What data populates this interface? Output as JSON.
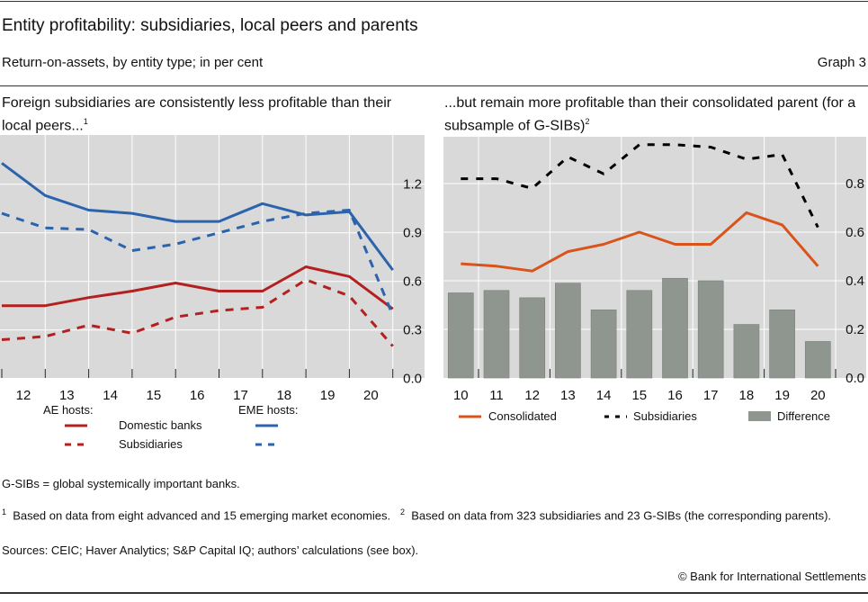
{
  "header": {
    "title": "Entity profitability: subsidiaries, local peers and parents",
    "subtitle": "Return-on-assets, by entity type; in per cent",
    "graph_label": "Graph 3"
  },
  "colors": {
    "background": "#d9d9d9",
    "grid": "#ffffff",
    "blue": "#2b63ad",
    "red": "#b3201f",
    "orange": "#d9531a",
    "black": "#000000",
    "bars": "#8f968f"
  },
  "chart_data": [
    {
      "type": "line",
      "title": "Foreign subsidiaries are consistently less profitable than their local peers...",
      "title_footnote": "1",
      "x_tick_labels": [
        "12",
        "13",
        "14",
        "15",
        "16",
        "17",
        "18",
        "19",
        "20"
      ],
      "ylim": [
        0,
        1.5
      ],
      "y_ticks": [
        "0.0",
        "0.3",
        "0.6",
        "0.9",
        "1.2"
      ],
      "grid": true,
      "y_axis_side": "right",
      "legend": {
        "placement": "bottom",
        "group_labels": [
          "AE hosts:",
          "EME hosts:"
        ],
        "row_labels": [
          "Domestic banks",
          "Subsidiaries"
        ]
      },
      "series": [
        {
          "name": "AE hosts: Domestic banks",
          "color": "#b3201f",
          "dash": false,
          "values": [
            0.45,
            0.45,
            0.5,
            0.54,
            0.59,
            0.54,
            0.54,
            0.69,
            0.63,
            0.43
          ]
        },
        {
          "name": "AE hosts: Subsidiaries",
          "color": "#b3201f",
          "dash": true,
          "values": [
            0.24,
            0.26,
            0.33,
            0.28,
            0.38,
            0.42,
            0.44,
            0.61,
            0.51,
            0.2
          ]
        },
        {
          "name": "EME hosts: Domestic banks",
          "color": "#2b63ad",
          "dash": false,
          "values": [
            1.33,
            1.13,
            1.04,
            1.02,
            0.97,
            0.97,
            1.08,
            1.01,
            1.03,
            0.67
          ]
        },
        {
          "name": "EME hosts: Subsidiaries",
          "color": "#2b63ad",
          "dash": true,
          "values": [
            1.02,
            0.93,
            0.92,
            0.79,
            0.83,
            0.9,
            0.97,
            1.02,
            1.04,
            0.39
          ]
        }
      ]
    },
    {
      "type": "bar+line",
      "title": "...but remain more profitable than their consolidated parent (for a subsample of G-SIBs)",
      "title_footnote": "2",
      "categories": [
        "10",
        "11",
        "12",
        "13",
        "14",
        "15",
        "16",
        "17",
        "18",
        "19",
        "20"
      ],
      "ylim": [
        0,
        1.0
      ],
      "y_ticks": [
        "0.0",
        "0.2",
        "0.4",
        "0.6",
        "0.8"
      ],
      "grid": true,
      "y_axis_side": "right",
      "legend": {
        "placement": "bottom"
      },
      "series": [
        {
          "name": "Consolidated",
          "type": "line",
          "color": "#d9531a",
          "dash": false,
          "values": [
            0.47,
            0.46,
            0.44,
            0.52,
            0.55,
            0.6,
            0.55,
            0.55,
            0.68,
            0.63,
            0.46
          ]
        },
        {
          "name": "Subsidiaries",
          "type": "line",
          "color": "#000000",
          "dash": true,
          "values": [
            0.82,
            0.82,
            0.78,
            0.91,
            0.84,
            0.96,
            0.96,
            0.95,
            0.9,
            0.92,
            0.62
          ]
        },
        {
          "name": "Difference",
          "type": "bar",
          "color": "#8f968f",
          "values": [
            0.35,
            0.36,
            0.33,
            0.39,
            0.28,
            0.36,
            0.41,
            0.4,
            0.22,
            0.28,
            0.15
          ]
        }
      ]
    }
  ],
  "footer": {
    "abbrev": "G-SIBs = global systemically important banks.",
    "note1_marker": "1",
    "note1": "Based on data from eight advanced and 15 emerging market economies.",
    "note2_marker": "2",
    "note2": "Based on data from 323 subsidiaries and 23 G-SIBs (the corresponding parents).",
    "sources": "Sources: CEIC; Haver Analytics; S&P Capital IQ; authors’ calculations (see box).",
    "copyright": "© Bank for International Settlements"
  }
}
